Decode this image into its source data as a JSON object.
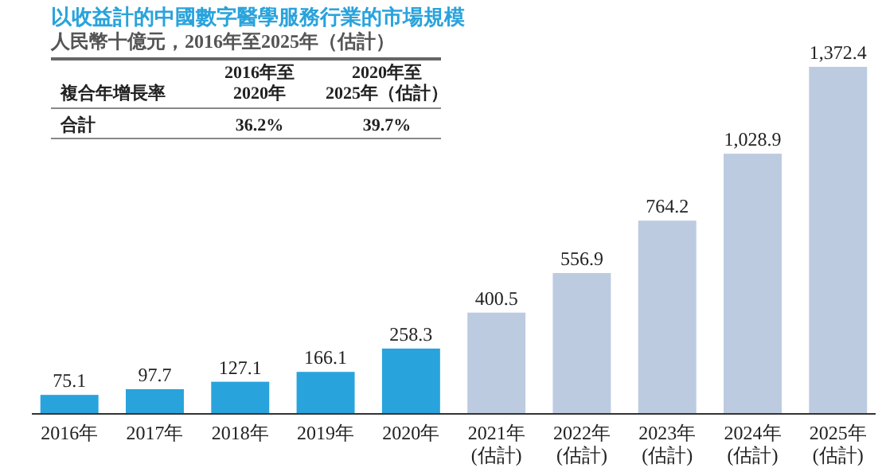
{
  "chart_data": {
    "type": "bar",
    "title": "以收益計的中國數字醫學服務行業的市場規模",
    "subtitle": "人民幣十億元，2016年至2025年（估計）",
    "categories": [
      "2016年",
      "2017年",
      "2018年",
      "2019年",
      "2020年",
      "2021年\n(估計)",
      "2022年\n(估計)",
      "2023年\n(估計)",
      "2024年\n(估計)",
      "2025年\n(估計)"
    ],
    "values": [
      75.1,
      97.7,
      127.1,
      166.1,
      258.3,
      400.5,
      556.9,
      764.2,
      1028.9,
      1372.4
    ],
    "colors": [
      "#29a3dc",
      "#29a3dc",
      "#29a3dc",
      "#29a3dc",
      "#29a3dc",
      "#bccbe0",
      "#bccbe0",
      "#bccbe0",
      "#bccbe0",
      "#bccbe0"
    ],
    "value_labels": [
      "75.1",
      "97.7",
      "127.1",
      "166.1",
      "258.3",
      "400.5",
      "556.9",
      "764.2",
      "1,028.9",
      "1,372.4"
    ],
    "annotations": [
      "複合年增長率",
      "2016年至\n2020年",
      "2020年至\n2025年（估計）",
      "合計",
      "36.2%",
      "39.7%"
    ]
  }
}
